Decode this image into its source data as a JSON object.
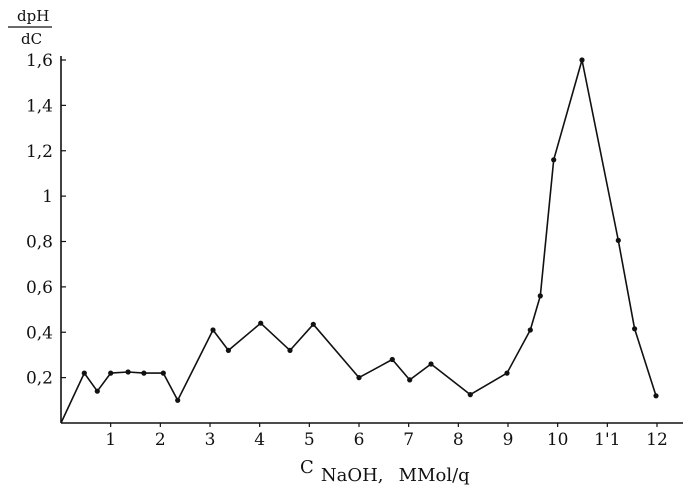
{
  "chart_data": {
    "type": "line",
    "title": "",
    "ylabel": {
      "numerator": "dpH",
      "denominator": "dC"
    },
    "xlabel": {
      "main": "C",
      "subscript": "NaOH,",
      "unit": "MMol/q"
    },
    "xlim": [
      0,
      12.5
    ],
    "ylim": [
      0,
      1.65
    ],
    "x_ticks": [
      {
        "value": 1,
        "label": "1"
      },
      {
        "value": 2,
        "label": "2"
      },
      {
        "value": 3,
        "label": "3"
      },
      {
        "value": 4,
        "label": "4"
      },
      {
        "value": 5,
        "label": "5"
      },
      {
        "value": 6,
        "label": "6"
      },
      {
        "value": 7,
        "label": "7"
      },
      {
        "value": 8,
        "label": "8"
      },
      {
        "value": 9,
        "label": "9"
      },
      {
        "value": 10,
        "label": "10"
      },
      {
        "value": 11,
        "label": "1'1"
      },
      {
        "value": 12,
        "label": "12"
      }
    ],
    "y_ticks": [
      {
        "value": 0.2,
        "label": "0,2"
      },
      {
        "value": 0.4,
        "label": "0,4"
      },
      {
        "value": 0.6,
        "label": "0,6"
      },
      {
        "value": 0.8,
        "label": "0,8"
      },
      {
        "value": 1.0,
        "label": "1"
      },
      {
        "value": 1.2,
        "label": "1,2"
      },
      {
        "value": 1.4,
        "label": "1,4"
      },
      {
        "value": 1.6,
        "label": "1,6"
      }
    ],
    "grid": false,
    "series": [
      {
        "points": [
          {
            "x": 0.0,
            "y": 0.0,
            "marker": false
          },
          {
            "x": 0.47,
            "y": 0.22,
            "marker": true
          },
          {
            "x": 0.73,
            "y": 0.14,
            "marker": true
          },
          {
            "x": 1.0,
            "y": 0.22,
            "marker": true
          },
          {
            "x": 1.35,
            "y": 0.225,
            "marker": true
          },
          {
            "x": 1.67,
            "y": 0.22,
            "marker": true
          },
          {
            "x": 2.06,
            "y": 0.22,
            "marker": true
          },
          {
            "x": 2.35,
            "y": 0.1,
            "marker": true
          },
          {
            "x": 3.06,
            "y": 0.41,
            "marker": true
          },
          {
            "x": 3.37,
            "y": 0.32,
            "marker": true
          },
          {
            "x": 4.02,
            "y": 0.44,
            "marker": true
          },
          {
            "x": 4.61,
            "y": 0.32,
            "marker": true
          },
          {
            "x": 5.08,
            "y": 0.435,
            "marker": true
          },
          {
            "x": 6.0,
            "y": 0.2,
            "marker": true
          },
          {
            "x": 6.67,
            "y": 0.28,
            "marker": true
          },
          {
            "x": 7.02,
            "y": 0.19,
            "marker": true
          },
          {
            "x": 7.45,
            "y": 0.26,
            "marker": true
          },
          {
            "x": 8.24,
            "y": 0.125,
            "marker": true
          },
          {
            "x": 8.98,
            "y": 0.22,
            "marker": true
          },
          {
            "x": 9.45,
            "y": 0.41,
            "marker": true
          },
          {
            "x": 9.65,
            "y": 0.56,
            "marker": true
          },
          {
            "x": 9.92,
            "y": 1.16,
            "marker": true
          },
          {
            "x": 10.49,
            "y": 1.6,
            "marker": true
          },
          {
            "x": 11.22,
            "y": 0.805,
            "marker": true
          },
          {
            "x": 11.55,
            "y": 0.415,
            "marker": true
          },
          {
            "x": 11.98,
            "y": 0.12,
            "marker": true
          }
        ]
      }
    ]
  }
}
